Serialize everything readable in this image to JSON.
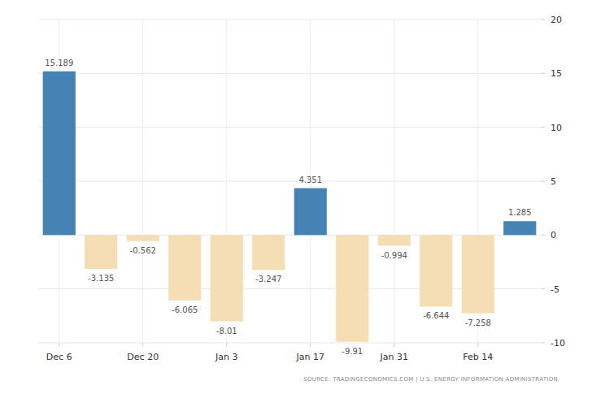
{
  "chart_data": {
    "type": "bar",
    "categories": [
      "Dec 6",
      null,
      "Dec 20",
      null,
      "Jan 3",
      null,
      "Jan 17",
      null,
      "Jan 31",
      null,
      "Feb 14",
      null
    ],
    "values": [
      15.189,
      -3.135,
      -0.562,
      -6.065,
      -8.01,
      -3.247,
      4.351,
      -9.91,
      -0.994,
      -6.644,
      -7.258,
      1.285
    ],
    "colors": [
      "#4682b4",
      "#f5deb3",
      "#f5deb3",
      "#f5deb3",
      "#f5deb3",
      "#f5deb3",
      "#4682b4",
      "#f5deb3",
      "#f5deb3",
      "#f5deb3",
      "#f5deb3",
      "#4682b4"
    ],
    "ylim": [
      -10,
      20
    ],
    "yticks": [
      -10,
      -5,
      0,
      5,
      10,
      15,
      20
    ],
    "grid": true,
    "data_labels": true,
    "source": "SOURCE: TRADINGECONOMICS.COM  |  U.S. ENERGY INFORMATION ADMINISTRATION"
  }
}
